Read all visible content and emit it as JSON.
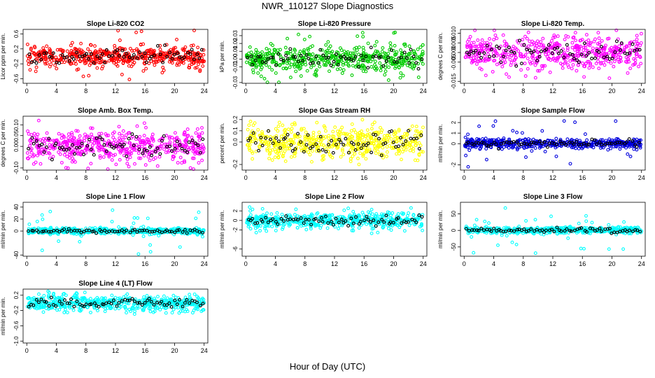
{
  "title": "NWR_110127  Slope Diagnostics",
  "xlabel": "Hour of Day (UTC)",
  "chart_data": [
    {
      "type": "scatter",
      "title": "Slope Li-820 CO2",
      "ylabel": "Licor ppm per min.",
      "ylim": [
        -0.72,
        0.72
      ],
      "yticks": [
        "-0.6",
        "-0.2",
        "0.2",
        "0.6"
      ],
      "ytick_values": [
        -0.6,
        -0.2,
        0.2,
        0.6
      ],
      "xticks": [
        0,
        4,
        8,
        12,
        16,
        20,
        24
      ],
      "xlim": [
        -0.5,
        24.5
      ],
      "color": "#ff0000",
      "spread": 0.13,
      "outlier_scale": 0.7,
      "seed": 11
    },
    {
      "type": "scatter",
      "title": "Slope Li-820 Pressure",
      "ylabel": "kPa per min.",
      "ylim": [
        -0.031,
        0.038
      ],
      "yticks": [
        "-0.03",
        "-0.01",
        "0.00",
        "0.01",
        "0.02",
        "0.03"
      ],
      "ytick_values": [
        -0.03,
        -0.01,
        0.0,
        0.01,
        0.02,
        0.03
      ],
      "xticks": [
        0,
        4,
        8,
        12,
        16,
        20,
        24
      ],
      "xlim": [
        -0.5,
        24.5
      ],
      "color": "#00cc00",
      "spread": 0.008,
      "outlier_scale": 0.035,
      "seed": 23
    },
    {
      "type": "scatter",
      "title": "Slope Li-820 Temp.",
      "ylabel": "degrees C per min.",
      "ylim": [
        -0.016,
        0.012
      ],
      "yticks": [
        "-0.015",
        "-0.005",
        "0.000",
        "0.005",
        "0.010"
      ],
      "ytick_values": [
        -0.015,
        -0.005,
        0.0,
        0.005,
        0.01
      ],
      "xticks": [
        0,
        4,
        8,
        12,
        16,
        20,
        24
      ],
      "xlim": [
        -0.5,
        24.5
      ],
      "color": "#ff00ff",
      "spread": 0.004,
      "outlier_scale": 0.014,
      "seed": 37
    },
    {
      "type": "scatter",
      "title": "Slope Amb. Box Temp.",
      "ylabel": "degrees C per min.",
      "ylim": [
        -0.11,
        0.14
      ],
      "yticks": [
        "-0.10",
        "0.00",
        "0.05",
        "0.10"
      ],
      "ytick_values": [
        -0.1,
        0.0,
        0.05,
        0.1
      ],
      "xticks": [
        0,
        4,
        8,
        12,
        16,
        20,
        24
      ],
      "xlim": [
        -0.5,
        24.5
      ],
      "color": "#ff00ff",
      "spread": 0.035,
      "outlier_scale": 0.12,
      "seed": 41
    },
    {
      "type": "scatter",
      "title": "Slope Gas Stream RH",
      "ylabel": "percent per min.",
      "ylim": [
        -0.25,
        0.23
      ],
      "yticks": [
        "-0.2",
        "0.0",
        "0.1",
        "0.2"
      ],
      "ytick_values": [
        -0.2,
        0.0,
        0.1,
        0.2
      ],
      "xticks": [
        0,
        4,
        8,
        12,
        16,
        20,
        24
      ],
      "xlim": [
        -0.5,
        24.5
      ],
      "color": "#ffff00",
      "spread": 0.07,
      "outlier_scale": 0.2,
      "seed": 53
    },
    {
      "type": "scatter",
      "title": "Slope Sample Flow",
      "ylabel": "ml/min per min.",
      "ylim": [
        -2.5,
        2.6
      ],
      "yticks": [
        "-2",
        "0",
        "1",
        "2"
      ],
      "ytick_values": [
        -2,
        0,
        1,
        2
      ],
      "xticks": [
        0,
        4,
        8,
        12,
        16,
        20,
        24
      ],
      "xlim": [
        -0.5,
        24.5
      ],
      "color": "#0000dd",
      "spread": 0.22,
      "outlier_scale": 2.2,
      "seed": 67
    },
    {
      "type": "scatter",
      "title": "Slope Line 1 Flow",
      "ylabel": "ml/min per min.",
      "ylim": [
        -42,
        48
      ],
      "yticks": [
        "-40",
        "0",
        "20",
        "40"
      ],
      "ytick_values": [
        -40,
        0,
        20,
        40
      ],
      "xticks": [
        0,
        4,
        8,
        12,
        16,
        20,
        24
      ],
      "xlim": [
        -0.5,
        24.5
      ],
      "color": "#00ffff",
      "spread": 2.5,
      "outlier_scale": 40,
      "seed": 71
    },
    {
      "type": "scatter",
      "title": "Slope Line 2 Flow",
      "ylabel": "ml/min per min.",
      "ylim": [
        -7.5,
        3.8
      ],
      "yticks": [
        "-6",
        "-2",
        "0",
        "2"
      ],
      "ytick_values": [
        -6,
        -2,
        0,
        2
      ],
      "xticks": [
        0,
        4,
        8,
        12,
        16,
        20,
        24
      ],
      "xlim": [
        -0.5,
        24.5
      ],
      "color": "#00ffff",
      "spread": 0.8,
      "outlier_scale": 3.0,
      "seed": 83
    },
    {
      "type": "scatter",
      "title": "Slope Line 3 Flow",
      "ylabel": "ml/min per min.",
      "ylim": [
        -78,
        85
      ],
      "yticks": [
        "-50",
        "0",
        "50"
      ],
      "ytick_values": [
        -50,
        0,
        50
      ],
      "xticks": [
        0,
        4,
        8,
        12,
        16,
        20,
        24
      ],
      "xlim": [
        -0.5,
        24.5
      ],
      "color": "#00ffff",
      "spread": 5,
      "outlier_scale": 70,
      "seed": 97
    },
    {
      "type": "scatter",
      "title": "Slope Line 4 (LT) Flow",
      "ylabel": "ml/min per min.",
      "ylim": [
        -1.05,
        0.36
      ],
      "yticks": [
        "-1.0",
        "-0.6",
        "-0.2",
        "0.2"
      ],
      "ytick_values": [
        -1.0,
        -0.6,
        -0.2,
        0.2
      ],
      "xticks": [
        0,
        4,
        8,
        12,
        16,
        20,
        24
      ],
      "xlim": [
        -0.5,
        24.5
      ],
      "color": "#00ffff",
      "spread": 0.1,
      "outlier_scale": 0.3,
      "seed": 101
    }
  ]
}
